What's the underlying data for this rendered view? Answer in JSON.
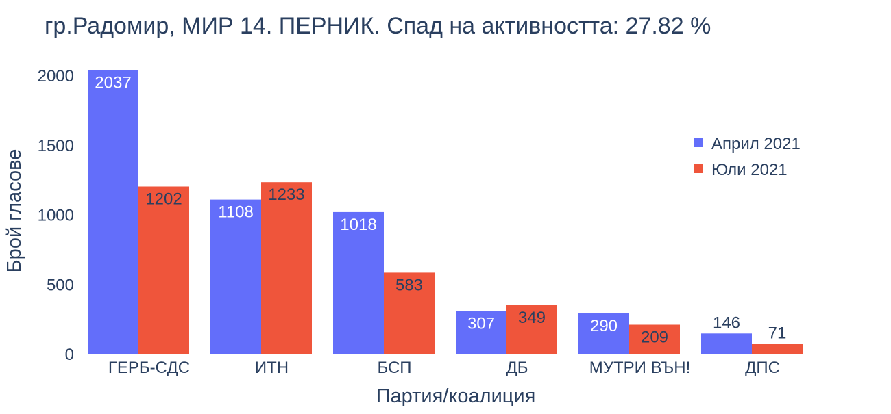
{
  "chart_data": {
    "type": "bar",
    "title": "гр.Радомир, МИР 14. ПЕРНИК. Спад на активността: 27.82 %",
    "xlabel": "Партия/коалиция",
    "ylabel": "Брой гласове",
    "categories": [
      "ГЕРБ-СДС",
      "ИТН",
      "БСП",
      "ДБ",
      "МУТРИ ВЪН!",
      "ДПС"
    ],
    "series": [
      {
        "name": "Април 2021",
        "values": [
          2037,
          1108,
          1018,
          307,
          290,
          146
        ],
        "color": "#636efa"
      },
      {
        "name": "Юли 2021",
        "values": [
          1202,
          1233,
          583,
          349,
          209,
          71
        ],
        "color": "#ef553b"
      }
    ],
    "ylim": [
      0,
      2050
    ],
    "yticks": [
      0,
      500,
      1000,
      1500,
      2000
    ],
    "grid": false,
    "legend_position": "top-right",
    "text_color": "#2a3f5f",
    "background": "#ffffff"
  }
}
